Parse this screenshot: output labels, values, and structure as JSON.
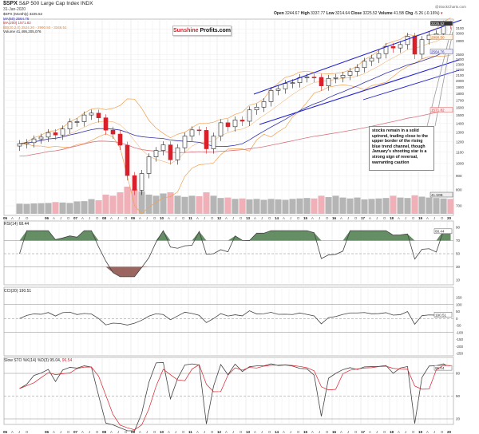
{
  "header": {
    "symbol": "$SPX",
    "name": "S&P 500 Large Cap Index INDX",
    "date": "31-Jan-2020",
    "copyright": "@StockCharts.com",
    "open_label": "Open",
    "open": "3244.67",
    "high_label": "High",
    "high": "3337.77",
    "low_label": "Low",
    "low": "3214.64",
    "close_label": "Close",
    "close": "3225.52",
    "volume_label": "Volume",
    "volume": "41.5B",
    "chg_label": "Chg",
    "chg": "-5.26 (-0.16%)"
  },
  "legend": {
    "price": "$SPX (Monthly) 3225.52",
    "ma50": "MA(50) 2564.76",
    "ma200": "MA(200) 1571.82",
    "bb": "BB(20,2.0) 2524.20 - 2990.50 - 3346.51",
    "volume": "Volume 41,495,205,076"
  },
  "logo": {
    "part1": "Sunshine",
    "part2": "Profits.com"
  },
  "annotation": "stocks remain in a solid uptrend, trading close to the upper border of the rising blue trend channel, though January's shooting star is a strong sign of reversal, warranting caution",
  "panels": {
    "rsi": "RSI(14) 68.44",
    "cci": "CCI(20) 190.51",
    "stoch": "Slow STO %K(14) %D(3) 95.04,",
    "stoch_d": "96.54"
  },
  "colors": {
    "up": "#222222",
    "down": "#d9202a",
    "ma50": "#3333aa",
    "ma200": "#d9707a",
    "bb": "#f0a050",
    "channel": "#2222cc",
    "pos_fill": "#4a7a4a",
    "neg_fill": "#8a4a44",
    "vol_up": "#b5b5b5",
    "vol_down": "#efb0b8"
  },
  "chart_data": {
    "type": "candlestick",
    "title": "$SPX S&P 500 Large Cap Index",
    "period": "quarterly approximation of monthly chart",
    "x_start": "2005-Q1",
    "closes": [
      1181,
      1191,
      1229,
      1248,
      1295,
      1270,
      1336,
      1418,
      1421,
      1503,
      1527,
      1468,
      1323,
      1280,
      1166,
      903,
      798,
      919,
      1057,
      1115,
      1169,
      1031,
      1141,
      1258,
      1326,
      1321,
      1131,
      1258,
      1408,
      1362,
      1441,
      1426,
      1569,
      1606,
      1682,
      1848,
      1872,
      1960,
      1972,
      2059,
      2068,
      2063,
      1920,
      2044,
      2060,
      2099,
      2168,
      2239,
      2363,
      2423,
      2519,
      2674,
      2641,
      2718,
      2914,
      2507,
      2834,
      2942,
      2977,
      3231,
      3226
    ],
    "volume": [
      45,
      44,
      46,
      47,
      48,
      52,
      50,
      48,
      55,
      56,
      65,
      60,
      85,
      80,
      95,
      120,
      110,
      100,
      85,
      80,
      90,
      95,
      80,
      75,
      80,
      78,
      95,
      80,
      70,
      72,
      66,
      68,
      64,
      66,
      62,
      66,
      64,
      62,
      66,
      68,
      70,
      68,
      80,
      74,
      80,
      72,
      68,
      72,
      64,
      66,
      68,
      70,
      80,
      72,
      70,
      82,
      76,
      72,
      70,
      68,
      66
    ],
    "y_scale": "log",
    "ylim": [
      700,
      3300
    ],
    "y_ticks": [
      700,
      800,
      900,
      1000,
      1100,
      1200,
      1300,
      1400,
      1500,
      1600,
      1700,
      1800,
      1900,
      2000,
      2100,
      2200,
      2300,
      2400,
      2500,
      2800,
      3000,
      3100
    ],
    "x_year_labels": [
      "05",
      "06",
      "07",
      "08",
      "09",
      "10",
      "11",
      "12",
      "13",
      "14",
      "15",
      "16",
      "17",
      "18",
      "19",
      "20"
    ],
    "x_month_labels": [
      "A",
      "J",
      "O"
    ],
    "value_tags": {
      "close": "3225.52",
      "bb_mid": "2990.50",
      "ma50": "2564.76",
      "ma200": "1571.82",
      "volume": "41.50B"
    },
    "rsi_ticks": [
      90,
      70,
      50,
      30,
      10
    ],
    "cci_ticks": [
      150,
      100,
      50,
      0,
      -50,
      -100,
      -150,
      -200,
      -250
    ],
    "stoch_ticks": [
      80,
      50,
      20
    ],
    "rsi_tag": "68.44",
    "cci_tag": "190.51",
    "stoch_tag": "95.04"
  }
}
